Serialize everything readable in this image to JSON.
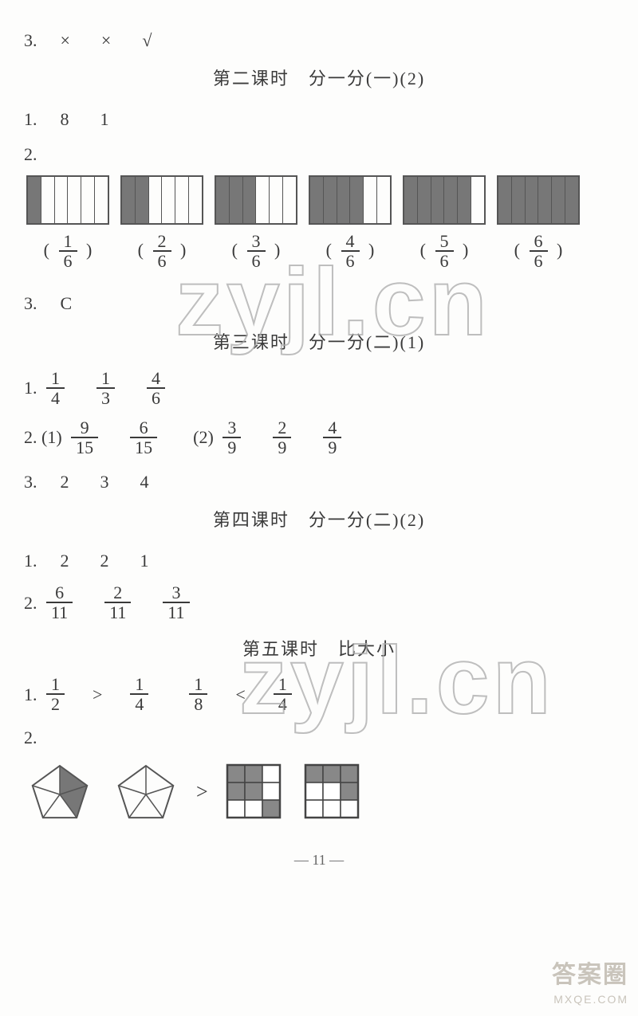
{
  "colors": {
    "bg": "#fdfdfc",
    "text": "#3a3a3a",
    "bar_border": "#555555",
    "bar_fill": "#777777",
    "wm_stroke": "#aaaaaa",
    "corner": "#b8b2a6",
    "pentagon_stroke": "#555",
    "grid_fill": "#888"
  },
  "q3": {
    "prefix": "3.",
    "v1": "×",
    "v2": "×",
    "v3": "√"
  },
  "lesson2": {
    "title": "第二课时　分一分(一)(2)"
  },
  "l2_q1": {
    "prefix": "1.",
    "a": "8",
    "b": "1"
  },
  "l2_q2": {
    "prefix": "2.",
    "items": [
      {
        "total": 6,
        "filled": 1,
        "frac": {
          "n": "1",
          "d": "6"
        }
      },
      {
        "total": 6,
        "filled": 2,
        "frac": {
          "n": "2",
          "d": "6"
        }
      },
      {
        "total": 6,
        "filled": 3,
        "frac": {
          "n": "3",
          "d": "6"
        }
      },
      {
        "total": 6,
        "filled": 4,
        "frac": {
          "n": "4",
          "d": "6"
        }
      },
      {
        "total": 6,
        "filled": 5,
        "frac": {
          "n": "5",
          "d": "6"
        }
      },
      {
        "total": 6,
        "filled": 6,
        "frac": {
          "n": "6",
          "d": "6"
        }
      }
    ]
  },
  "l2_q3": {
    "prefix": "3.",
    "ans": "C"
  },
  "lesson3": {
    "title": "第三课时　分一分(二)(1)"
  },
  "l3_q1": {
    "prefix": "1.",
    "fracs": [
      {
        "n": "1",
        "d": "4"
      },
      {
        "n": "1",
        "d": "3"
      },
      {
        "n": "4",
        "d": "6"
      }
    ]
  },
  "l3_q2": {
    "prefix": "2.",
    "g1_label": "(1)",
    "g1": [
      {
        "n": "9",
        "d": "15"
      },
      {
        "n": "6",
        "d": "15"
      }
    ],
    "g2_label": "(2)",
    "g2": [
      {
        "n": "3",
        "d": "9"
      },
      {
        "n": "2",
        "d": "9"
      },
      {
        "n": "4",
        "d": "9"
      }
    ]
  },
  "l3_q3": {
    "prefix": "3.",
    "a": "2",
    "b": "3",
    "c": "4"
  },
  "lesson4": {
    "title": "第四课时　分一分(二)(2)"
  },
  "l4_q1": {
    "prefix": "1.",
    "a": "2",
    "b": "2",
    "c": "1"
  },
  "l4_q2": {
    "prefix": "2.",
    "fracs": [
      {
        "n": "6",
        "d": "11"
      },
      {
        "n": "2",
        "d": "11"
      },
      {
        "n": "3",
        "d": "11"
      }
    ]
  },
  "lesson5": {
    "title": "第五课时　比大小"
  },
  "l5_q1": {
    "prefix": "1.",
    "p1a": {
      "n": "1",
      "d": "2"
    },
    "op1": ">",
    "p1b": {
      "n": "1",
      "d": "4"
    },
    "p2a": {
      "n": "1",
      "d": "8"
    },
    "op2": "<",
    "p2b": {
      "n": "1",
      "d": "4"
    }
  },
  "l5_q2": {
    "prefix": "2.",
    "op": ">",
    "pentagons": {
      "radius": 36,
      "stroke": "#555",
      "stroke_width": 2,
      "left": {
        "shaded_slices": [
          0,
          1
        ],
        "slice_fill": "#777"
      },
      "right": {
        "shaded_slices": [],
        "slice_fill": "#777"
      }
    },
    "grids": {
      "rows": 3,
      "cols": 3,
      "cell": 22,
      "fill": "#888",
      "stroke": "#444",
      "left": {
        "shaded": [
          [
            0,
            0
          ],
          [
            0,
            1
          ],
          [
            1,
            0
          ],
          [
            1,
            1
          ],
          [
            2,
            2
          ]
        ]
      },
      "right": {
        "shaded": [
          [
            0,
            0
          ],
          [
            0,
            1
          ],
          [
            0,
            2
          ],
          [
            1,
            2
          ]
        ]
      }
    }
  },
  "watermarks": {
    "text": "zyjl.cn",
    "font_size": 120,
    "stroke": "#aaaaaa"
  },
  "corner": {
    "line1": "答案圈",
    "line2": "MXQE.COM"
  },
  "page_number": "— 11 —"
}
